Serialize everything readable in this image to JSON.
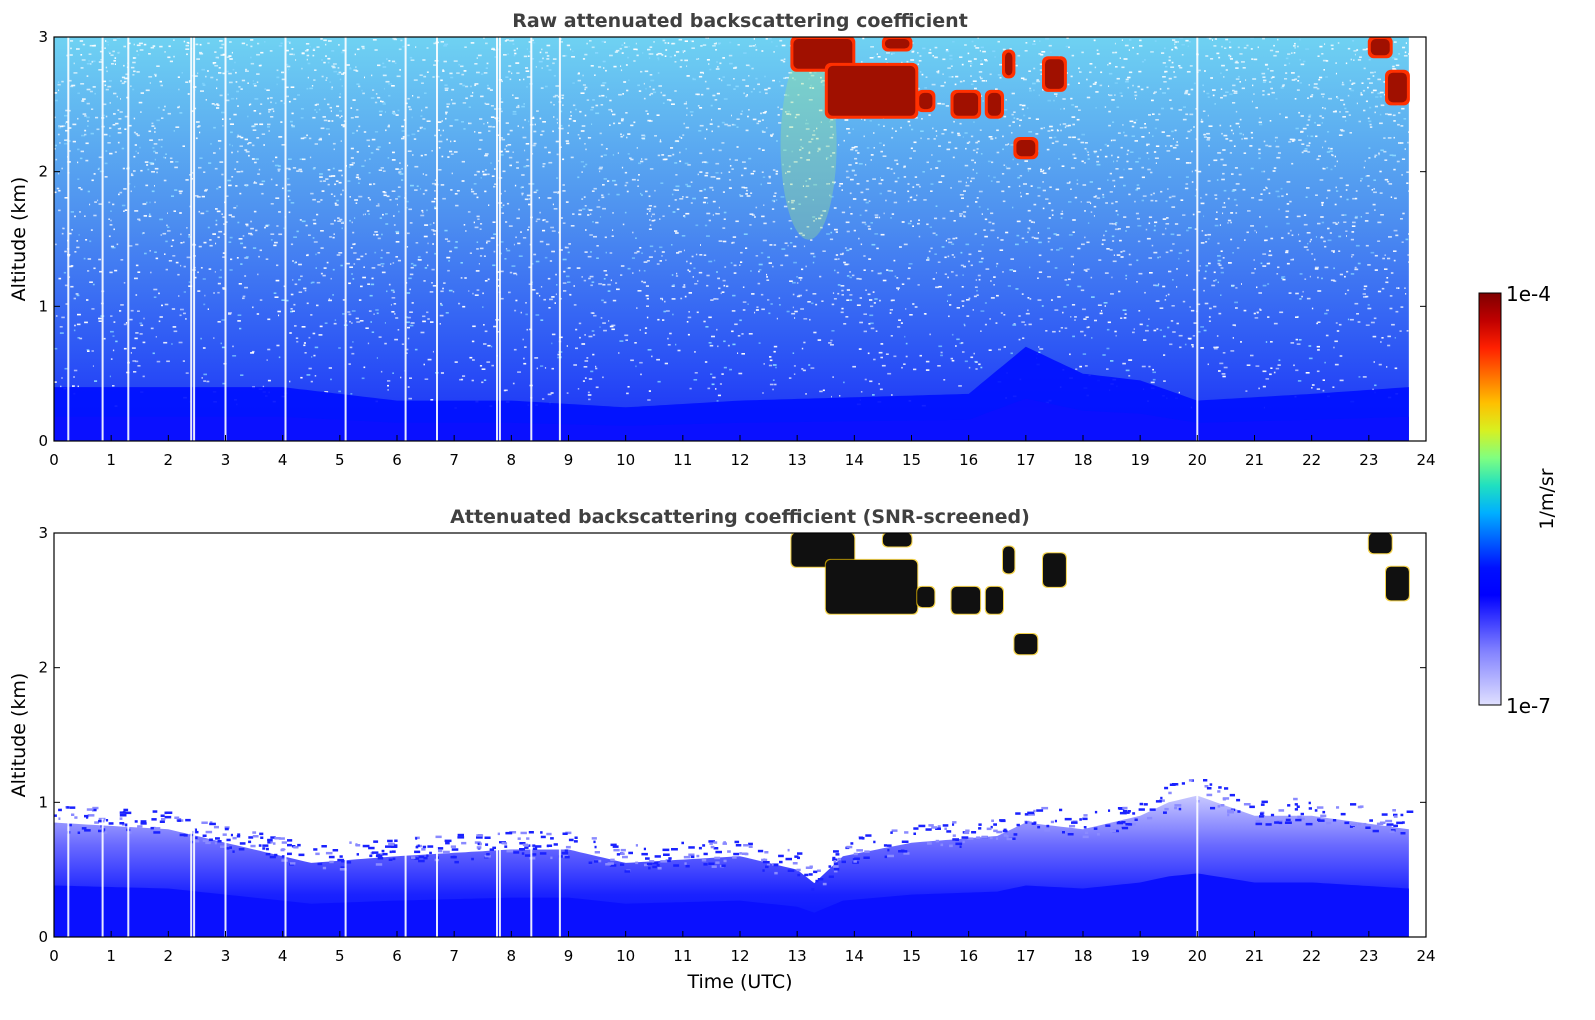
{
  "chart_data": [
    {
      "type": "heatmap",
      "title": "Raw attenuated backscattering coefficient",
      "xlabel": "",
      "ylabel": "Altitude (km)",
      "xlim": [
        0,
        24
      ],
      "ylim": [
        0,
        3
      ],
      "xticks": [
        "0",
        "1",
        "2",
        "3",
        "4",
        "5",
        "6",
        "7",
        "8",
        "9",
        "10",
        "11",
        "12",
        "13",
        "14",
        "15",
        "16",
        "17",
        "18",
        "19",
        "20",
        "21",
        "22",
        "23",
        "24"
      ],
      "yticks": [
        "0",
        "1",
        "2",
        "3"
      ],
      "data_end_time": 23.7,
      "boundary_layer_top_km": [
        [
          0,
          0.4
        ],
        [
          4,
          0.4
        ],
        [
          6,
          0.3
        ],
        [
          8,
          0.3
        ],
        [
          10,
          0.25
        ],
        [
          12,
          0.3
        ],
        [
          16,
          0.35
        ],
        [
          17,
          0.7
        ],
        [
          18,
          0.5
        ],
        [
          19,
          0.45
        ],
        [
          20,
          0.3
        ],
        [
          22,
          0.35
        ],
        [
          23.7,
          0.4
        ]
      ],
      "clouds": [
        {
          "t0": 12.9,
          "t1": 14.0,
          "altitude_km": [
            2.75,
            3.0
          ]
        },
        {
          "t0": 13.5,
          "t1": 15.1,
          "altitude_km": [
            2.4,
            2.8
          ]
        },
        {
          "t0": 14.5,
          "t1": 15.0,
          "altitude_km": [
            2.9,
            3.0
          ]
        },
        {
          "t0": 15.1,
          "t1": 15.4,
          "altitude_km": [
            2.45,
            2.6
          ]
        },
        {
          "t0": 15.7,
          "t1": 16.2,
          "altitude_km": [
            2.4,
            2.6
          ]
        },
        {
          "t0": 16.3,
          "t1": 16.6,
          "altitude_km": [
            2.4,
            2.6
          ]
        },
        {
          "t0": 16.6,
          "t1": 16.8,
          "altitude_km": [
            2.7,
            2.9
          ]
        },
        {
          "t0": 16.8,
          "t1": 17.2,
          "altitude_km": [
            2.1,
            2.25
          ]
        },
        {
          "t0": 17.3,
          "t1": 17.7,
          "altitude_km": [
            2.6,
            2.85
          ]
        },
        {
          "t0": 23.0,
          "t1": 23.4,
          "altitude_km": [
            2.85,
            3.0
          ]
        },
        {
          "t0": 23.3,
          "t1": 23.7,
          "altitude_km": [
            2.5,
            2.75
          ]
        }
      ],
      "vertical_gaps_utc": [
        0.25,
        0.85,
        1.3,
        2.4,
        2.45,
        3.0,
        4.05,
        5.1,
        6.15,
        6.7,
        7.75,
        7.8,
        8.35,
        8.85,
        20.0
      ]
    },
    {
      "type": "heatmap",
      "title": "Attenuated backscattering coefficient (SNR-screened)",
      "xlabel": "Time (UTC)",
      "ylabel": "Altitude (km)",
      "xlim": [
        0,
        24
      ],
      "ylim": [
        0,
        3
      ],
      "xticks": [
        "0",
        "1",
        "2",
        "3",
        "4",
        "5",
        "6",
        "7",
        "8",
        "9",
        "10",
        "11",
        "12",
        "13",
        "14",
        "15",
        "16",
        "17",
        "18",
        "19",
        "20",
        "21",
        "22",
        "23",
        "24"
      ],
      "yticks": [
        "0",
        "1",
        "2",
        "3"
      ],
      "data_end_time": 23.7,
      "boundary_layer_top_km": [
        [
          0,
          0.85
        ],
        [
          2,
          0.8
        ],
        [
          3,
          0.7
        ],
        [
          4.5,
          0.55
        ],
        [
          6,
          0.6
        ],
        [
          8,
          0.65
        ],
        [
          9,
          0.65
        ],
        [
          10,
          0.55
        ],
        [
          12,
          0.6
        ],
        [
          13,
          0.5
        ],
        [
          13.3,
          0.4
        ],
        [
          13.8,
          0.6
        ],
        [
          15,
          0.7
        ],
        [
          16.5,
          0.75
        ],
        [
          17,
          0.85
        ],
        [
          18,
          0.8
        ],
        [
          19,
          0.9
        ],
        [
          19.5,
          1.0
        ],
        [
          20,
          1.05
        ],
        [
          21,
          0.9
        ],
        [
          22,
          0.9
        ],
        [
          23.7,
          0.8
        ]
      ],
      "clouds": [
        {
          "t0": 12.9,
          "t1": 14.0,
          "altitude_km": [
            2.75,
            3.0
          ]
        },
        {
          "t0": 13.5,
          "t1": 15.1,
          "altitude_km": [
            2.4,
            2.8
          ]
        },
        {
          "t0": 14.5,
          "t1": 15.0,
          "altitude_km": [
            2.9,
            3.0
          ]
        },
        {
          "t0": 15.1,
          "t1": 15.4,
          "altitude_km": [
            2.45,
            2.6
          ]
        },
        {
          "t0": 15.7,
          "t1": 16.2,
          "altitude_km": [
            2.4,
            2.6
          ]
        },
        {
          "t0": 16.3,
          "t1": 16.6,
          "altitude_km": [
            2.4,
            2.6
          ]
        },
        {
          "t0": 16.6,
          "t1": 16.8,
          "altitude_km": [
            2.7,
            2.9
          ]
        },
        {
          "t0": 16.8,
          "t1": 17.2,
          "altitude_km": [
            2.1,
            2.25
          ]
        },
        {
          "t0": 17.3,
          "t1": 17.7,
          "altitude_km": [
            2.6,
            2.85
          ]
        },
        {
          "t0": 23.0,
          "t1": 23.4,
          "altitude_km": [
            2.85,
            3.0
          ]
        },
        {
          "t0": 23.3,
          "t1": 23.7,
          "altitude_km": [
            2.5,
            2.75
          ]
        }
      ],
      "vertical_gaps_utc": [
        0.25,
        0.85,
        1.3,
        2.4,
        2.45,
        3.0,
        4.05,
        5.1,
        6.15,
        6.7,
        7.75,
        7.8,
        8.35,
        8.85,
        20.0
      ]
    }
  ],
  "colorbar": {
    "label": "1/m/sr",
    "max_label": "1e-4",
    "min_label": "1e-7",
    "colors": [
      "#7f0000",
      "#c00000",
      "#ff2000",
      "#ff7000",
      "#ffc000",
      "#d8f020",
      "#80ff80",
      "#20e0c0",
      "#00b0ff",
      "#0060ff",
      "#0010ff",
      "#0000ff",
      "#4040ff",
      "#8080ff",
      "#b0b0ff",
      "#e0e0ff"
    ]
  },
  "colors": {
    "cloud_raw": "#a01000",
    "cloud_raw_edge": "#ff3000",
    "cloud_screened": "#101010",
    "boundary_layer": "#0010ff",
    "noise_light": "#20c0ff",
    "noise_dark": "#0030ff"
  }
}
